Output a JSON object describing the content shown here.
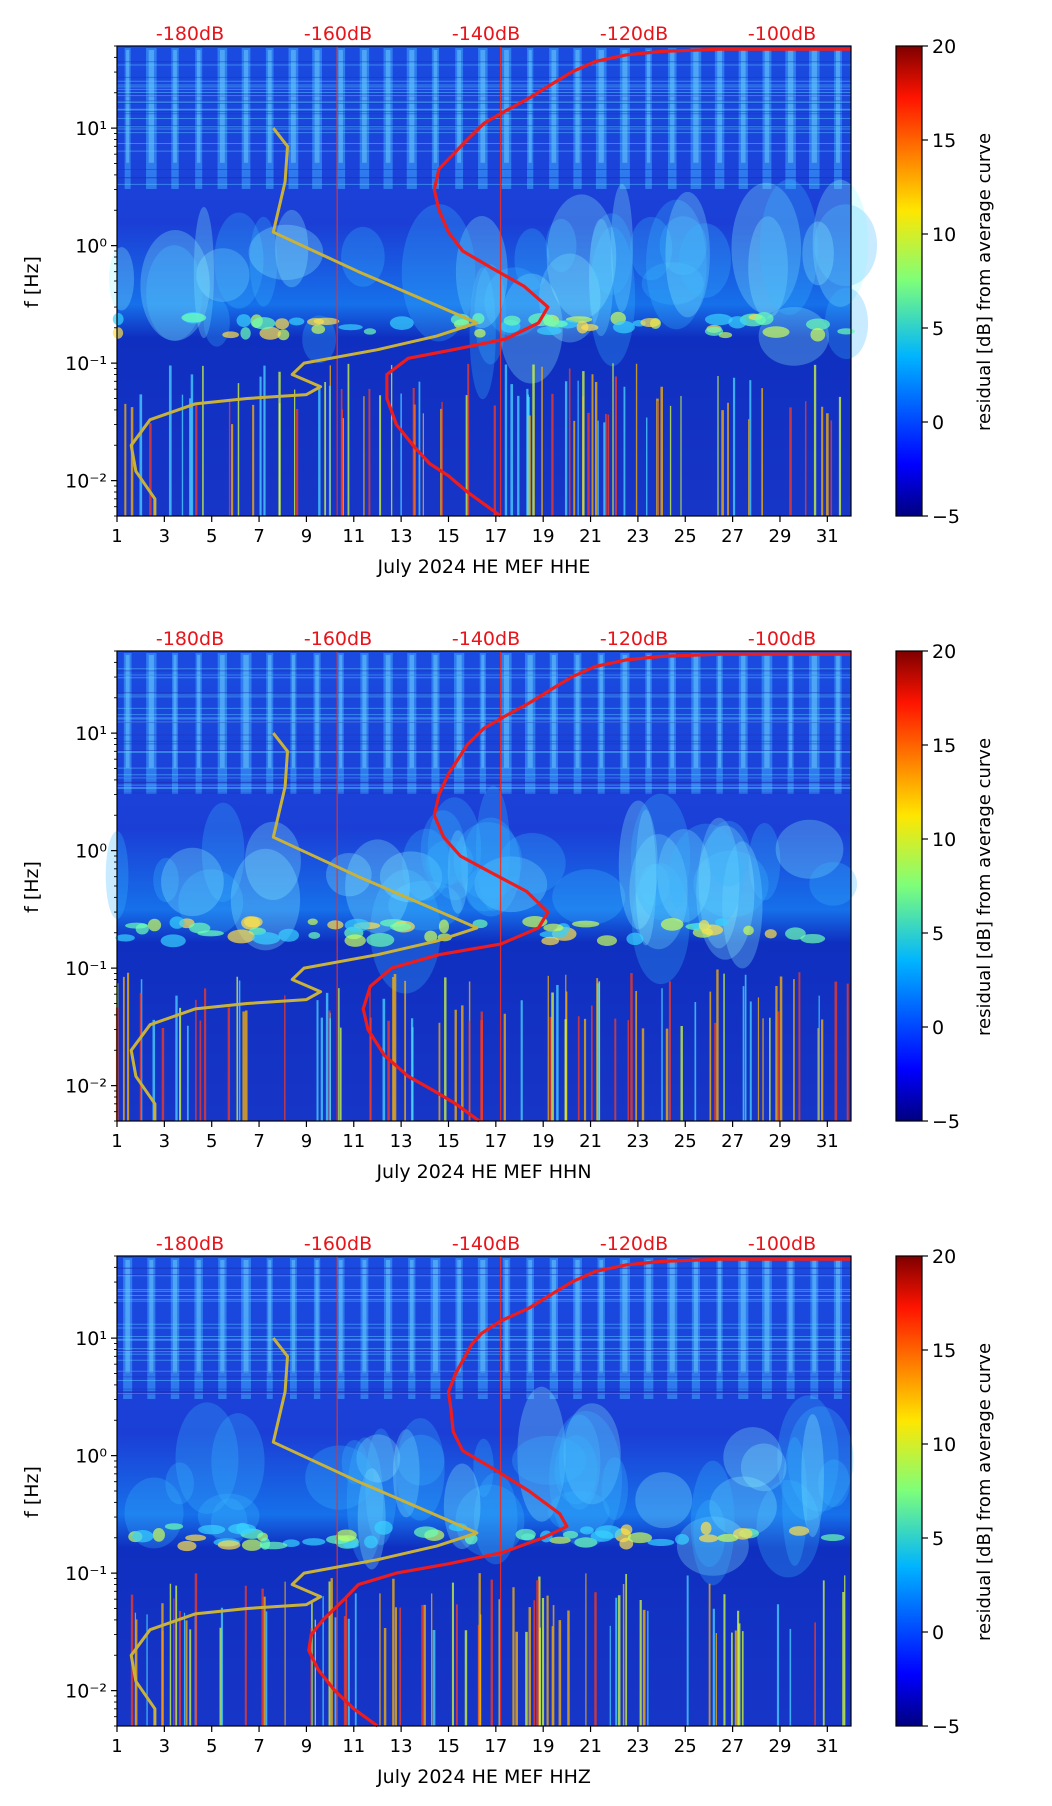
{
  "chart_data": [
    {
      "type": "heatmap",
      "channel": "HHE",
      "xlabel": "July 2024 HE MEF  HHE",
      "ylabel": "f [Hz]",
      "x_ticks": [
        "1",
        "3",
        "5",
        "7",
        "9",
        "11",
        "13",
        "15",
        "17",
        "19",
        "21",
        "23",
        "25",
        "27",
        "29",
        "31"
      ],
      "y_ticks": [
        {
          "label": "10⁻²",
          "value": 0.01
        },
        {
          "label": "10⁻¹",
          "value": 0.1
        },
        {
          "label": "10⁰",
          "value": 1
        },
        {
          "label": "10¹",
          "value": 10
        }
      ],
      "x_range": [
        1,
        32
      ],
      "y_range_hz": [
        0.005,
        50
      ],
      "db_labels": [
        "-180dB",
        "-160dB",
        "-140dB",
        "-120dB",
        "-100dB"
      ],
      "colorbar": {
        "label": "residual [dB] from average curve",
        "ticks": [
          "−5",
          "0",
          "5",
          "10",
          "15",
          "20"
        ],
        "range": [
          -5,
          20
        ]
      },
      "mean_curve": [
        [
          17.2,
          0.005
        ],
        [
          15.8,
          0.008
        ],
        [
          15,
          0.011
        ],
        [
          14.2,
          0.014
        ],
        [
          13.5,
          0.02
        ],
        [
          12.8,
          0.03
        ],
        [
          12.4,
          0.05
        ],
        [
          12.4,
          0.08
        ],
        [
          13.3,
          0.11
        ],
        [
          15.2,
          0.13
        ],
        [
          17.4,
          0.16
        ],
        [
          18.8,
          0.22
        ],
        [
          19.2,
          0.3
        ],
        [
          18.2,
          0.45
        ],
        [
          16.8,
          0.65
        ],
        [
          15.6,
          0.9
        ],
        [
          15,
          1.3
        ],
        [
          14.6,
          2
        ],
        [
          14.4,
          3
        ],
        [
          14.6,
          4.5
        ],
        [
          15.2,
          6
        ],
        [
          15.8,
          8
        ],
        [
          16.5,
          11
        ],
        [
          17.4,
          14
        ],
        [
          18.4,
          18
        ],
        [
          19.4,
          24
        ],
        [
          20.2,
          30
        ],
        [
          21.2,
          37
        ],
        [
          22.5,
          42
        ],
        [
          24,
          45
        ],
        [
          26.5,
          47
        ],
        [
          32,
          47
        ]
      ],
      "model_curve": [
        [
          2.6,
          0.005
        ],
        [
          2.6,
          0.007
        ],
        [
          1.8,
          0.012
        ],
        [
          1.6,
          0.02
        ],
        [
          2.4,
          0.033
        ],
        [
          4.3,
          0.045
        ],
        [
          6.5,
          0.05
        ],
        [
          9,
          0.054
        ],
        [
          9.6,
          0.063
        ],
        [
          8.4,
          0.08
        ],
        [
          8.9,
          0.1
        ],
        [
          12,
          0.13
        ],
        [
          14.5,
          0.17
        ],
        [
          16.2,
          0.22
        ],
        [
          14.2,
          0.33
        ],
        [
          11.2,
          0.6
        ],
        [
          7.6,
          1.3
        ],
        [
          8.1,
          3.5
        ],
        [
          8.2,
          7
        ],
        [
          7.6,
          10
        ]
      ]
    },
    {
      "type": "heatmap",
      "channel": "HHN",
      "xlabel": "July 2024 HE MEF  HHN",
      "ylabel": "f [Hz]",
      "x_ticks": [
        "1",
        "3",
        "5",
        "7",
        "9",
        "11",
        "13",
        "15",
        "17",
        "19",
        "21",
        "23",
        "25",
        "27",
        "29",
        "31"
      ],
      "y_ticks": [
        {
          "label": "10⁻²",
          "value": 0.01
        },
        {
          "label": "10⁻¹",
          "value": 0.1
        },
        {
          "label": "10⁰",
          "value": 1
        },
        {
          "label": "10¹",
          "value": 10
        }
      ],
      "x_range": [
        1,
        32
      ],
      "y_range_hz": [
        0.005,
        50
      ],
      "db_labels": [
        "-180dB",
        "-160dB",
        "-140dB",
        "-120dB",
        "-100dB"
      ],
      "colorbar": {
        "label": "residual [dB] from average curve",
        "ticks": [
          "−5",
          "0",
          "5",
          "10",
          "15",
          "20"
        ],
        "range": [
          -5,
          20
        ]
      },
      "mean_curve": [
        [
          16.3,
          0.005
        ],
        [
          15.3,
          0.007
        ],
        [
          14.4,
          0.009
        ],
        [
          13.3,
          0.012
        ],
        [
          12.3,
          0.018
        ],
        [
          11.6,
          0.03
        ],
        [
          11.4,
          0.045
        ],
        [
          11.7,
          0.07
        ],
        [
          12.6,
          0.1
        ],
        [
          14.6,
          0.13
        ],
        [
          17.2,
          0.16
        ],
        [
          18.8,
          0.22
        ],
        [
          19.2,
          0.3
        ],
        [
          18.3,
          0.45
        ],
        [
          16.8,
          0.65
        ],
        [
          15.5,
          0.9
        ],
        [
          14.8,
          1.3
        ],
        [
          14.4,
          2
        ],
        [
          14.6,
          3
        ],
        [
          15,
          4.5
        ],
        [
          15.4,
          6
        ],
        [
          15.8,
          8
        ],
        [
          16.5,
          11
        ],
        [
          17.4,
          14
        ],
        [
          18.4,
          18
        ],
        [
          19.4,
          24
        ],
        [
          20.2,
          30
        ],
        [
          21.2,
          37
        ],
        [
          22.5,
          42
        ],
        [
          24,
          45
        ],
        [
          26.5,
          47
        ],
        [
          32,
          47
        ]
      ],
      "model_curve": [
        [
          2.6,
          0.005
        ],
        [
          2.6,
          0.007
        ],
        [
          1.8,
          0.012
        ],
        [
          1.6,
          0.02
        ],
        [
          2.4,
          0.033
        ],
        [
          4.3,
          0.045
        ],
        [
          6.5,
          0.05
        ],
        [
          9,
          0.054
        ],
        [
          9.6,
          0.063
        ],
        [
          8.4,
          0.08
        ],
        [
          8.9,
          0.1
        ],
        [
          12,
          0.13
        ],
        [
          14.5,
          0.17
        ],
        [
          16.2,
          0.22
        ],
        [
          14.2,
          0.33
        ],
        [
          11.2,
          0.6
        ],
        [
          7.6,
          1.3
        ],
        [
          8.1,
          3.5
        ],
        [
          8.2,
          7
        ],
        [
          7.6,
          10
        ]
      ]
    },
    {
      "type": "heatmap",
      "channel": "HHZ",
      "xlabel": "July 2024 HE MEF  HHZ",
      "ylabel": "f [Hz]",
      "x_ticks": [
        "1",
        "3",
        "5",
        "7",
        "9",
        "11",
        "13",
        "15",
        "17",
        "19",
        "21",
        "23",
        "25",
        "27",
        "29",
        "31"
      ],
      "y_ticks": [
        {
          "label": "10⁻²",
          "value": 0.01
        },
        {
          "label": "10⁻¹",
          "value": 0.1
        },
        {
          "label": "10⁰",
          "value": 1
        },
        {
          "label": "10¹",
          "value": 10
        }
      ],
      "x_range": [
        1,
        32
      ],
      "y_range_hz": [
        0.005,
        50
      ],
      "db_labels": [
        "-180dB",
        "-160dB",
        "-140dB",
        "-120dB",
        "-100dB"
      ],
      "colorbar": {
        "label": "residual [dB] from average curve",
        "ticks": [
          "−5",
          "0",
          "5",
          "10",
          "15",
          "20"
        ],
        "range": [
          -5,
          20
        ]
      },
      "mean_curve": [
        [
          12,
          0.005
        ],
        [
          11,
          0.007
        ],
        [
          10.2,
          0.01
        ],
        [
          9.5,
          0.015
        ],
        [
          9.1,
          0.022
        ],
        [
          9.2,
          0.03
        ],
        [
          9.7,
          0.04
        ],
        [
          10.6,
          0.06
        ],
        [
          11.2,
          0.08
        ],
        [
          12.8,
          0.1
        ],
        [
          15,
          0.12
        ],
        [
          17.3,
          0.15
        ],
        [
          19,
          0.2
        ],
        [
          20,
          0.25
        ],
        [
          19.7,
          0.32
        ],
        [
          18.4,
          0.5
        ],
        [
          17,
          0.75
        ],
        [
          15.6,
          1.1
        ],
        [
          15.2,
          1.6
        ],
        [
          15.1,
          2.5
        ],
        [
          15,
          3.5
        ],
        [
          15.3,
          5
        ],
        [
          15.7,
          7
        ],
        [
          16,
          9
        ],
        [
          16.4,
          11
        ],
        [
          17.2,
          14
        ],
        [
          18.4,
          18
        ],
        [
          19.4,
          24
        ],
        [
          20.2,
          30
        ],
        [
          21.2,
          37
        ],
        [
          22.5,
          42
        ],
        [
          24,
          45
        ],
        [
          26.5,
          47
        ],
        [
          32,
          47
        ]
      ],
      "model_curve": [
        [
          2.6,
          0.005
        ],
        [
          2.6,
          0.007
        ],
        [
          1.8,
          0.012
        ],
        [
          1.6,
          0.02
        ],
        [
          2.4,
          0.033
        ],
        [
          4.3,
          0.045
        ],
        [
          6.5,
          0.05
        ],
        [
          9,
          0.054
        ],
        [
          9.6,
          0.063
        ],
        [
          8.4,
          0.08
        ],
        [
          8.9,
          0.1
        ],
        [
          12,
          0.13
        ],
        [
          14.5,
          0.17
        ],
        [
          16.2,
          0.22
        ],
        [
          14.2,
          0.33
        ],
        [
          11.2,
          0.6
        ],
        [
          7.6,
          1.3
        ],
        [
          8.1,
          3.5
        ],
        [
          8.2,
          7
        ],
        [
          7.6,
          10
        ]
      ]
    }
  ],
  "colors": {
    "background_dark": "#0a2aa8",
    "mean_curve": "#ee1c1c",
    "model_curve": "#c9b23a",
    "db_label": "#e8141a",
    "axis": "#000000"
  }
}
